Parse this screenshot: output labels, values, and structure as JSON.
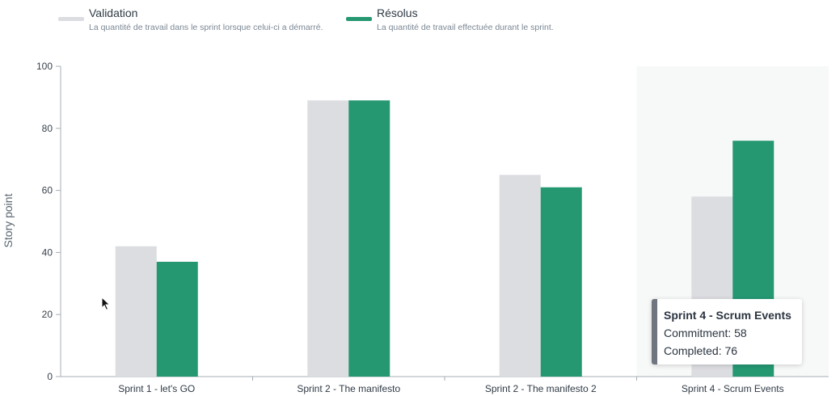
{
  "legend": {
    "validation": {
      "label": "Validation",
      "description": "La quantité de travail dans le sprint lorsque celui-ci a démarré."
    },
    "resolus": {
      "label": "Résolus",
      "description": "La quantité de travail effectuée durant le sprint."
    }
  },
  "tooltip": {
    "title": "Sprint 4 - Scrum Events",
    "commitment": "Commitment: 58",
    "completed": "Completed: 76"
  },
  "colors": {
    "validation": "#dcdde1",
    "resolus": "#259872",
    "axis": "#a7aeb5",
    "highlight": "#f7f8f8"
  },
  "chart_data": {
    "type": "bar",
    "categories": [
      "Sprint 1 - let's GO",
      "Sprint 2 - The manifesto",
      "Sprint 2 - The manifesto 2",
      "Sprint 4 - Scrum Events"
    ],
    "series": [
      {
        "name": "Validation",
        "values": [
          42,
          89,
          65,
          58
        ]
      },
      {
        "name": "Résolus",
        "values": [
          37,
          89,
          61,
          76
        ]
      }
    ],
    "ylabel": "Story point",
    "xlabel": "",
    "ylim": [
      0,
      100
    ],
    "yticks": [
      0,
      20,
      40,
      60,
      80,
      100
    ],
    "highlighted_category": "Sprint 4 - Scrum Events",
    "grid": false,
    "legend_position": "top-left"
  }
}
